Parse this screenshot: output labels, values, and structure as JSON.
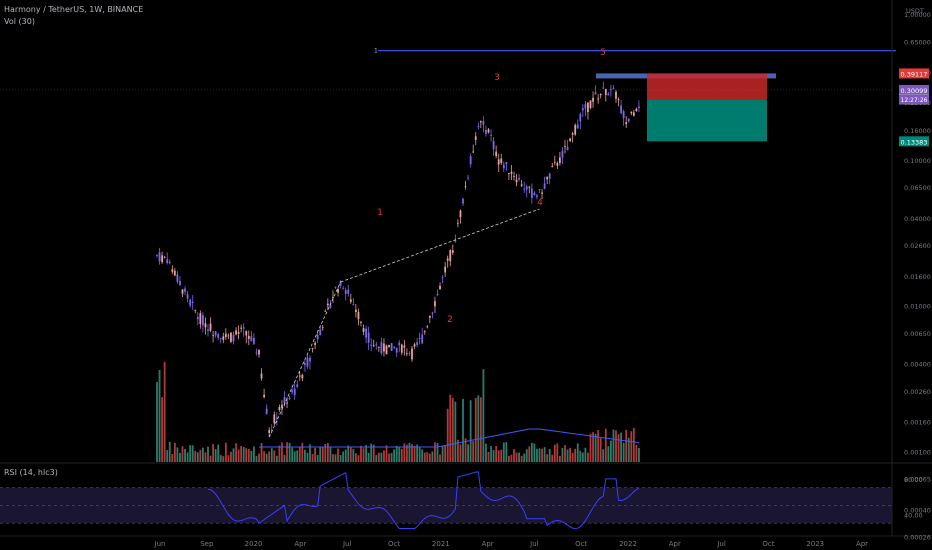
{
  "header": {
    "title": "Harmony / TetherUS, 1W, BINANCE",
    "vol_label": "Vol (30)",
    "rsi_label": "RSI (14, hlc3)"
  },
  "colors": {
    "background": "#000000",
    "up": "#7b68ee",
    "down": "#e8a0a0",
    "volume_up": "#2e7d6b",
    "volume_down": "#b03a3a",
    "vol_ma": "#3d5afe",
    "resistance_line": "#3d5afe",
    "stop_zone": "#c62828",
    "target_zone": "#00897b",
    "wave_label": "#e53935",
    "rsi_line": "#3d3dff",
    "rsi_band": "#1a1530"
  },
  "chart_data": {
    "type": "candlestick",
    "title": "Harmony / TetherUS, 1W, BINANCE",
    "y_scale": "log",
    "ylim": [
      0.0009,
      1.0
    ],
    "price_ticks": [
      "1.00000",
      "0.65000",
      "0.40000",
      "0.25000",
      "0.16000",
      "0.10000",
      "0.06500",
      "0.04000",
      "0.02600",
      "0.01600",
      "0.01000",
      "0.00650",
      "0.00400",
      "0.00260",
      "0.00160",
      "0.00100",
      "0.00065",
      "0.00040",
      "0.00026",
      "0.00017"
    ],
    "currency_label": "USDT",
    "x_ticks": [
      "Jun",
      "Sep",
      "2020",
      "Apr",
      "Jul",
      "Oct",
      "2021",
      "Apr",
      "Jul",
      "Oct",
      "2022",
      "Apr",
      "Jul",
      "Oct",
      "2023",
      "Apr"
    ],
    "price_markers": {
      "stop": "0.39117",
      "last": "0.30099",
      "countdown": "12:27:26",
      "entry": "0.25948",
      "target": "0.13383"
    },
    "wave_labels": [
      "1",
      "2",
      "3",
      "4",
      "5"
    ],
    "resistance_label": "1",
    "rsi_ticks": [
      "80.00",
      "40.00"
    ],
    "rsi_levels": [
      70,
      30
    ],
    "rsi_range": [
      20,
      90
    ]
  }
}
